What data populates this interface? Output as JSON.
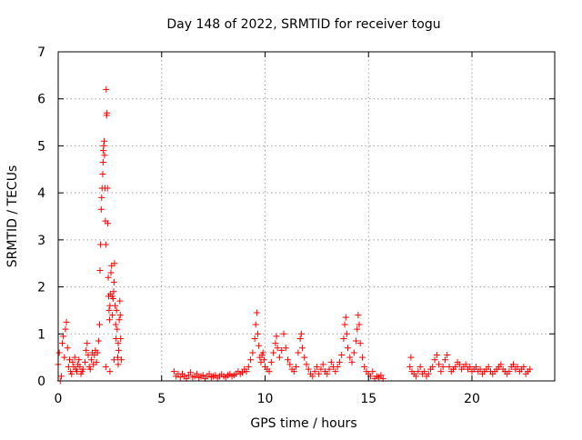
{
  "chart_data": {
    "type": "scatter",
    "title": "Day 148 of 2022, SRMTID for receiver togu",
    "xlabel": "GPS time / hours",
    "ylabel": "SRMTID / TECUs",
    "xlim": [
      0,
      24
    ],
    "ylim": [
      0,
      7
    ],
    "xticks": [
      0,
      5,
      10,
      15,
      20
    ],
    "yticks": [
      0,
      1,
      2,
      3,
      4,
      5,
      6,
      7
    ],
    "grid": true,
    "marker": "+",
    "color": "#ff0000",
    "series": [
      {
        "name": "SRMTID",
        "points": [
          [
            0.0,
            0.35
          ],
          [
            0.05,
            0.6
          ],
          [
            0.1,
            0.0
          ],
          [
            0.15,
            0.1
          ],
          [
            0.2,
            0.8
          ],
          [
            0.25,
            0.95
          ],
          [
            0.3,
            0.5
          ],
          [
            0.35,
            1.1
          ],
          [
            0.4,
            1.25
          ],
          [
            0.45,
            0.7
          ],
          [
            0.5,
            0.3
          ],
          [
            0.55,
            0.45
          ],
          [
            0.6,
            0.2
          ],
          [
            0.65,
            0.15
          ],
          [
            0.7,
            0.4
          ],
          [
            0.75,
            0.3
          ],
          [
            0.8,
            0.5
          ],
          [
            0.85,
            0.25
          ],
          [
            0.9,
            0.2
          ],
          [
            0.95,
            0.35
          ],
          [
            1.0,
            0.45
          ],
          [
            1.05,
            0.3
          ],
          [
            1.1,
            0.15
          ],
          [
            1.15,
            0.2
          ],
          [
            1.2,
            0.25
          ],
          [
            1.3,
            0.4
          ],
          [
            1.35,
            0.65
          ],
          [
            1.4,
            0.8
          ],
          [
            1.45,
            0.55
          ],
          [
            1.5,
            0.3
          ],
          [
            1.55,
            0.25
          ],
          [
            1.6,
            0.45
          ],
          [
            1.65,
            0.6
          ],
          [
            1.7,
            0.35
          ],
          [
            1.75,
            0.55
          ],
          [
            1.8,
            0.65
          ],
          [
            1.85,
            0.4
          ],
          [
            1.9,
            0.6
          ],
          [
            1.95,
            0.85
          ],
          [
            2.0,
            1.2
          ],
          [
            2.02,
            2.35
          ],
          [
            2.05,
            2.9
          ],
          [
            2.08,
            3.65
          ],
          [
            2.1,
            3.9
          ],
          [
            2.12,
            4.1
          ],
          [
            2.15,
            4.4
          ],
          [
            2.17,
            4.65
          ],
          [
            2.18,
            4.9
          ],
          [
            2.2,
            5.0
          ],
          [
            2.22,
            5.1
          ],
          [
            2.24,
            4.8
          ],
          [
            2.26,
            4.1
          ],
          [
            2.28,
            3.4
          ],
          [
            2.3,
            2.9
          ],
          [
            2.32,
            6.2
          ],
          [
            2.34,
            5.65
          ],
          [
            2.36,
            5.7
          ],
          [
            2.38,
            4.1
          ],
          [
            2.4,
            3.35
          ],
          [
            2.42,
            2.2
          ],
          [
            2.44,
            1.8
          ],
          [
            2.46,
            1.5
          ],
          [
            2.48,
            1.3
          ],
          [
            2.5,
            1.6
          ],
          [
            2.52,
            1.85
          ],
          [
            2.55,
            2.3
          ],
          [
            2.58,
            2.45
          ],
          [
            2.6,
            1.8
          ],
          [
            2.62,
            1.4
          ],
          [
            2.65,
            1.75
          ],
          [
            2.68,
            1.9
          ],
          [
            2.7,
            2.1
          ],
          [
            2.72,
            2.5
          ],
          [
            2.75,
            1.6
          ],
          [
            2.78,
            1.2
          ],
          [
            2.8,
            0.9
          ],
          [
            2.82,
            1.5
          ],
          [
            2.85,
            1.1
          ],
          [
            2.88,
            0.5
          ],
          [
            2.9,
            0.35
          ],
          [
            2.92,
            0.65
          ],
          [
            2.95,
            1.3
          ],
          [
            2.98,
            1.7
          ],
          [
            3.0,
            1.4
          ],
          [
            3.02,
            0.9
          ],
          [
            3.05,
            0.45
          ],
          [
            2.3,
            0.3
          ],
          [
            2.5,
            0.2
          ],
          [
            2.7,
            0.45
          ],
          [
            2.9,
            0.8
          ],
          [
            5.6,
            0.2
          ],
          [
            5.7,
            0.1
          ],
          [
            5.8,
            0.15
          ],
          [
            5.9,
            0.08
          ],
          [
            6.0,
            0.15
          ],
          [
            6.1,
            0.1
          ],
          [
            6.2,
            0.05
          ],
          [
            6.3,
            0.12
          ],
          [
            6.4,
            0.18
          ],
          [
            6.5,
            0.08
          ],
          [
            6.6,
            0.1
          ],
          [
            6.7,
            0.15
          ],
          [
            6.8,
            0.07
          ],
          [
            6.9,
            0.1
          ],
          [
            7.0,
            0.12
          ],
          [
            7.1,
            0.05
          ],
          [
            7.2,
            0.1
          ],
          [
            7.3,
            0.15
          ],
          [
            7.4,
            0.08
          ],
          [
            7.5,
            0.1
          ],
          [
            7.6,
            0.12
          ],
          [
            7.7,
            0.06
          ],
          [
            7.8,
            0.1
          ],
          [
            7.9,
            0.14
          ],
          [
            8.0,
            0.1
          ],
          [
            8.1,
            0.08
          ],
          [
            8.2,
            0.12
          ],
          [
            8.3,
            0.15
          ],
          [
            8.4,
            0.1
          ],
          [
            8.5,
            0.12
          ],
          [
            8.6,
            0.15
          ],
          [
            8.7,
            0.2
          ],
          [
            8.8,
            0.15
          ],
          [
            8.9,
            0.18
          ],
          [
            9.0,
            0.25
          ],
          [
            9.1,
            0.2
          ],
          [
            9.2,
            0.3
          ],
          [
            9.3,
            0.45
          ],
          [
            9.4,
            0.6
          ],
          [
            9.5,
            0.9
          ],
          [
            9.55,
            1.2
          ],
          [
            9.6,
            1.45
          ],
          [
            9.65,
            1.0
          ],
          [
            9.7,
            0.75
          ],
          [
            9.75,
            0.5
          ],
          [
            9.8,
            0.4
          ],
          [
            9.85,
            0.55
          ],
          [
            9.9,
            0.6
          ],
          [
            9.95,
            0.45
          ],
          [
            10.0,
            0.3
          ],
          [
            10.1,
            0.25
          ],
          [
            10.2,
            0.2
          ],
          [
            10.3,
            0.4
          ],
          [
            10.4,
            0.6
          ],
          [
            10.5,
            0.8
          ],
          [
            10.55,
            0.95
          ],
          [
            10.6,
            0.7
          ],
          [
            10.7,
            0.5
          ],
          [
            10.8,
            0.65
          ],
          [
            10.9,
            1.0
          ],
          [
            11.0,
            0.7
          ],
          [
            11.1,
            0.45
          ],
          [
            11.2,
            0.35
          ],
          [
            11.3,
            0.25
          ],
          [
            11.4,
            0.2
          ],
          [
            11.5,
            0.3
          ],
          [
            11.6,
            0.6
          ],
          [
            11.7,
            0.9
          ],
          [
            11.75,
            1.0
          ],
          [
            11.8,
            0.7
          ],
          [
            11.9,
            0.5
          ],
          [
            12.0,
            0.35
          ],
          [
            12.1,
            0.25
          ],
          [
            12.2,
            0.15
          ],
          [
            12.3,
            0.1
          ],
          [
            12.4,
            0.2
          ],
          [
            12.5,
            0.3
          ],
          [
            12.6,
            0.15
          ],
          [
            12.7,
            0.25
          ],
          [
            12.8,
            0.35
          ],
          [
            12.9,
            0.2
          ],
          [
            13.0,
            0.15
          ],
          [
            13.1,
            0.25
          ],
          [
            13.2,
            0.4
          ],
          [
            13.3,
            0.3
          ],
          [
            13.4,
            0.2
          ],
          [
            13.5,
            0.3
          ],
          [
            13.6,
            0.4
          ],
          [
            13.7,
            0.55
          ],
          [
            13.8,
            0.9
          ],
          [
            13.85,
            1.2
          ],
          [
            13.9,
            1.35
          ],
          [
            13.95,
            1.0
          ],
          [
            14.0,
            0.7
          ],
          [
            14.1,
            0.5
          ],
          [
            14.2,
            0.4
          ],
          [
            14.3,
            0.6
          ],
          [
            14.4,
            0.85
          ],
          [
            14.45,
            1.1
          ],
          [
            14.5,
            1.4
          ],
          [
            14.55,
            1.2
          ],
          [
            14.6,
            0.8
          ],
          [
            14.7,
            0.5
          ],
          [
            14.8,
            0.3
          ],
          [
            14.9,
            0.2
          ],
          [
            15.0,
            0.15
          ],
          [
            15.1,
            0.1
          ],
          [
            15.2,
            0.2
          ],
          [
            15.3,
            0.05
          ],
          [
            15.4,
            0.1
          ],
          [
            15.5,
            0.08
          ],
          [
            15.6,
            0.12
          ],
          [
            15.7,
            0.05
          ],
          [
            17.0,
            0.3
          ],
          [
            17.05,
            0.5
          ],
          [
            17.1,
            0.2
          ],
          [
            17.2,
            0.15
          ],
          [
            17.3,
            0.1
          ],
          [
            17.4,
            0.2
          ],
          [
            17.5,
            0.3
          ],
          [
            17.6,
            0.15
          ],
          [
            17.7,
            0.2
          ],
          [
            17.8,
            0.1
          ],
          [
            17.9,
            0.15
          ],
          [
            18.0,
            0.25
          ],
          [
            18.1,
            0.3
          ],
          [
            18.2,
            0.45
          ],
          [
            18.3,
            0.55
          ],
          [
            18.4,
            0.35
          ],
          [
            18.5,
            0.2
          ],
          [
            18.6,
            0.3
          ],
          [
            18.7,
            0.45
          ],
          [
            18.8,
            0.55
          ],
          [
            18.9,
            0.3
          ],
          [
            19.0,
            0.2
          ],
          [
            19.1,
            0.25
          ],
          [
            19.2,
            0.3
          ],
          [
            19.3,
            0.4
          ],
          [
            19.4,
            0.35
          ],
          [
            19.5,
            0.25
          ],
          [
            19.6,
            0.3
          ],
          [
            19.7,
            0.35
          ],
          [
            19.8,
            0.25
          ],
          [
            19.9,
            0.3
          ],
          [
            20.0,
            0.2
          ],
          [
            20.1,
            0.25
          ],
          [
            20.2,
            0.3
          ],
          [
            20.3,
            0.2
          ],
          [
            20.4,
            0.25
          ],
          [
            20.5,
            0.15
          ],
          [
            20.6,
            0.2
          ],
          [
            20.7,
            0.25
          ],
          [
            20.8,
            0.3
          ],
          [
            20.9,
            0.2
          ],
          [
            21.0,
            0.15
          ],
          [
            21.1,
            0.2
          ],
          [
            21.2,
            0.25
          ],
          [
            21.3,
            0.3
          ],
          [
            21.4,
            0.35
          ],
          [
            21.5,
            0.25
          ],
          [
            21.6,
            0.2
          ],
          [
            21.7,
            0.15
          ],
          [
            21.8,
            0.2
          ],
          [
            21.9,
            0.3
          ],
          [
            22.0,
            0.35
          ],
          [
            22.1,
            0.25
          ],
          [
            22.2,
            0.3
          ],
          [
            22.3,
            0.2
          ],
          [
            22.4,
            0.25
          ],
          [
            22.5,
            0.3
          ],
          [
            22.6,
            0.15
          ],
          [
            22.7,
            0.2
          ],
          [
            22.8,
            0.25
          ]
        ]
      }
    ]
  }
}
